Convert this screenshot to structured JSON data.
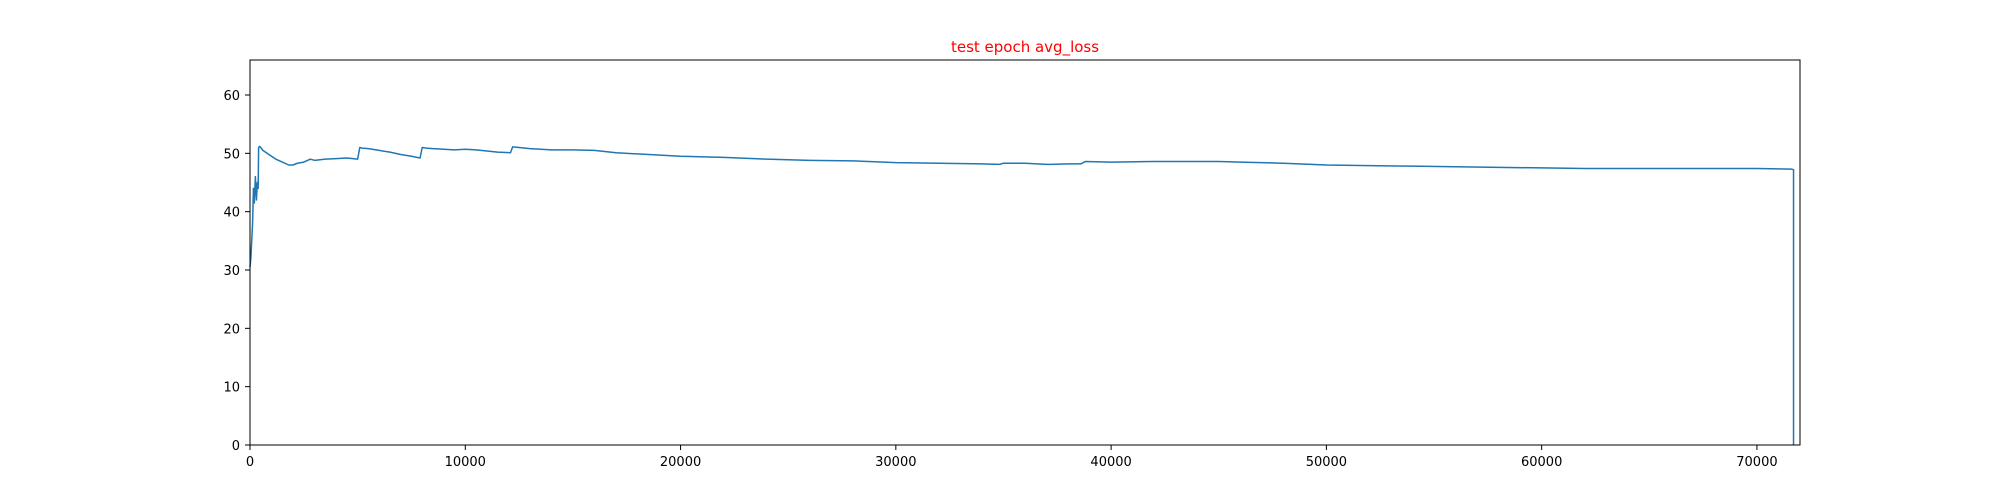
{
  "chart_data": {
    "type": "line",
    "title": "test epoch avg_loss",
    "title_color": "#ff0000",
    "line_color": "#1f77b4",
    "xlabel": "",
    "ylabel": "",
    "xlim": [
      0,
      72000
    ],
    "ylim": [
      0,
      66
    ],
    "grid": false,
    "x_ticks": [
      0,
      10000,
      20000,
      30000,
      40000,
      50000,
      60000,
      70000
    ],
    "x_tick_labels": [
      "0",
      "10000",
      "20000",
      "30000",
      "40000",
      "50000",
      "60000",
      "70000"
    ],
    "y_ticks": [
      0,
      10,
      20,
      30,
      40,
      50,
      60
    ],
    "y_tick_labels": [
      "0",
      "10",
      "20",
      "30",
      "40",
      "50",
      "60"
    ],
    "series": [
      {
        "x": [
          0,
          40,
          80,
          120,
          160,
          200,
          250,
          300,
          340,
          380,
          400,
          450,
          500,
          600,
          800,
          1000,
          1200,
          1500,
          1800,
          2000,
          2200,
          2500,
          2800,
          3000,
          3500,
          4000,
          4500,
          5000,
          5100,
          5200,
          5500,
          6000,
          6500,
          7000,
          7500,
          7900,
          8000,
          8200,
          8500,
          9000,
          9500,
          10000,
          10500,
          11000,
          11500,
          12100,
          12200,
          12500,
          13000,
          13500,
          14000,
          15000,
          16000,
          17000,
          18000,
          20000,
          22000,
          24000,
          26000,
          28000,
          30000,
          32000,
          34000,
          34800,
          35000,
          36000,
          37000,
          37200,
          38000,
          38600,
          38800,
          40000,
          42000,
          44000,
          45000,
          46000,
          48000,
          50000,
          52000,
          54000,
          56000,
          58000,
          60000,
          62000,
          64000,
          66000,
          68000,
          70000,
          71600,
          71700,
          71700
        ],
        "y": [
          30.5,
          32,
          35,
          38,
          44,
          41.5,
          46,
          42,
          45,
          44,
          51,
          51.2,
          51,
          50.5,
          50,
          49.5,
          49,
          48.5,
          48,
          48,
          48.3,
          48.5,
          49,
          48.8,
          49,
          49.1,
          49.2,
          49,
          51,
          50.9,
          50.8,
          50.5,
          50.2,
          49.8,
          49.5,
          49.2,
          51,
          50.9,
          50.8,
          50.7,
          50.6,
          50.7,
          50.6,
          50.4,
          50.2,
          50.1,
          51.1,
          51,
          50.8,
          50.7,
          50.6,
          50.6,
          50.5,
          50.1,
          49.9,
          49.5,
          49.3,
          49,
          48.8,
          48.7,
          48.4,
          48.3,
          48.2,
          48.1,
          48.3,
          48.3,
          48.1,
          48.1,
          48.2,
          48.2,
          48.6,
          48.5,
          48.6,
          48.6,
          48.6,
          48.5,
          48.3,
          48,
          47.9,
          47.8,
          47.7,
          47.6,
          47.5,
          47.4,
          47.4,
          47.4,
          47.4,
          47.4,
          47.3,
          47.2,
          0
        ]
      }
    ]
  }
}
